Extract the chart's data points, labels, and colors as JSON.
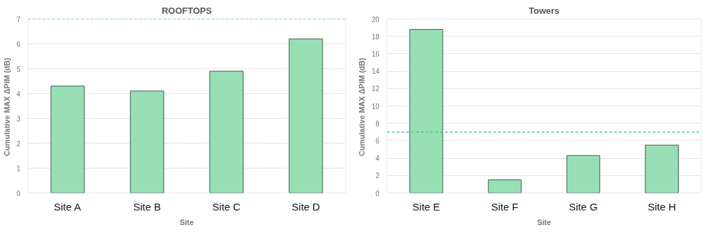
{
  "chart_data": [
    {
      "type": "bar",
      "title": "ROOFTOPS",
      "xlabel": "Site",
      "ylabel": "Cumulative  MAX ΔPIM (dB)",
      "categories": [
        "Site A",
        "Site B",
        "Site C",
        "Site D"
      ],
      "values": [
        4.3,
        4.1,
        4.9,
        6.2
      ],
      "color": "#98dfb5",
      "ylim": [
        0,
        7
      ],
      "yticks": [
        0,
        1,
        2,
        3,
        4,
        5,
        6,
        7
      ],
      "grid": "y",
      "ref_lines": [
        {
          "axis": "y",
          "value": 7,
          "color": "#3cb878",
          "line_style": "dashed"
        }
      ]
    },
    {
      "type": "bar",
      "title": "Towers",
      "xlabel": "Site",
      "ylabel": "Cumulative  MAX ΔPIM (dB)",
      "categories": [
        "Site E",
        "Site F",
        "Site G",
        "Site H"
      ],
      "values": [
        18.8,
        1.5,
        4.3,
        5.5
      ],
      "color": "#98dfb5",
      "ylim": [
        0,
        20
      ],
      "yticks": [
        0,
        2,
        4,
        6,
        8,
        10,
        12,
        14,
        16,
        18,
        20
      ],
      "grid": "y",
      "ref_lines": [
        {
          "axis": "y",
          "value": 7,
          "color": "#3cb878",
          "line_style": "dashed"
        }
      ]
    }
  ]
}
